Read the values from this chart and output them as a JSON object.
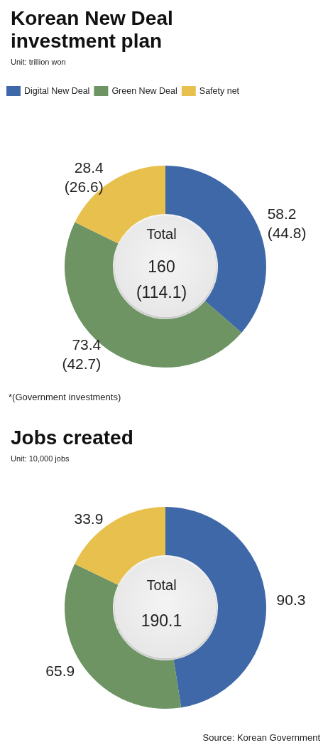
{
  "chart_data": [
    {
      "type": "donut",
      "title": "Korean New Deal investment plan",
      "subtitle": "Unit: trillion won",
      "categories": [
        "Digital New Deal",
        "Green New Deal",
        "Safety net"
      ],
      "values": [
        58.2,
        73.4,
        28.4
      ],
      "colors": [
        "#3f68a8",
        "#6d9462",
        "#e8c04d"
      ],
      "value_labels": [
        "58.2\n(44.8)",
        "73.4\n(42.7)",
        "28.4\n(26.6)"
      ],
      "legend": "top left",
      "annotations": [
        "Total",
        "160",
        "(114.1)",
        "*(Government investments)"
      ]
    },
    {
      "type": "donut",
      "title": "Jobs created",
      "subtitle": "Unit: 10,000 jobs",
      "categories": [
        null,
        null,
        null
      ],
      "values": [
        90.3,
        65.9,
        33.9
      ],
      "colors": [
        "#3f68a8",
        "#6d9462",
        "#e8c04d"
      ],
      "data_labels": true,
      "annotations": [
        "Total",
        "190.1",
        "Source: Korean Government"
      ]
    }
  ]
}
